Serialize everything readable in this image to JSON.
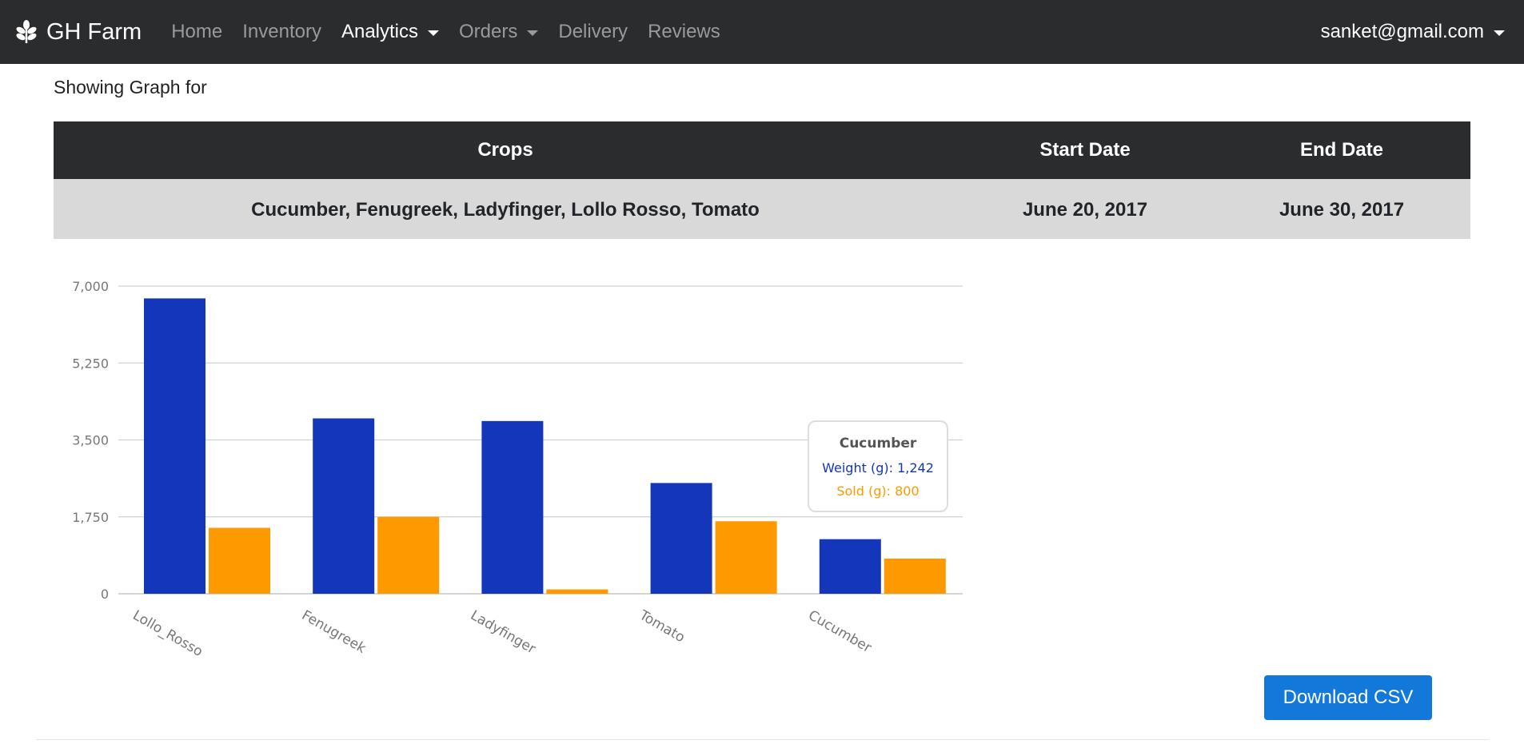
{
  "nav": {
    "brand": "GH Farm",
    "links": [
      "Home",
      "Inventory",
      "Analytics",
      "Orders",
      "Delivery",
      "Reviews"
    ],
    "user": "sanket@gmail.com"
  },
  "page": {
    "showing_label": "Showing Graph for",
    "table": {
      "headers": [
        "Crops",
        "Start Date",
        "End Date"
      ],
      "row": [
        "Cucumber, Fenugreek, Ladyfinger, Lollo Rosso, Tomato",
        "June 20, 2017",
        "June 30, 2017"
      ]
    },
    "download_button": "Download CSV"
  },
  "tooltip": {
    "title": "Cucumber",
    "line1": "Weight (g): 1,242",
    "line2": "Sold (g): 800"
  },
  "colors": {
    "weight": "#1436ba",
    "sold": "#ff9900",
    "navbar": "#2b2c2e",
    "button": "#1279db"
  },
  "chart_data": {
    "type": "bar",
    "categories": [
      "Lollo_Rosso",
      "Fenugreek",
      "Ladyfinger",
      "Tomato",
      "Cucumber"
    ],
    "series": [
      {
        "name": "Weight (g)",
        "values": [
          6720,
          3990,
          3930,
          2520,
          1242
        ]
      },
      {
        "name": "Sold (g)",
        "values": [
          1500,
          1750,
          100,
          1650,
          800
        ]
      }
    ],
    "yticks": [
      "0",
      "1,750",
      "3,500",
      "5,250",
      "7,000"
    ],
    "ylim": [
      0,
      7000
    ],
    "grid": true,
    "legend": "none"
  }
}
